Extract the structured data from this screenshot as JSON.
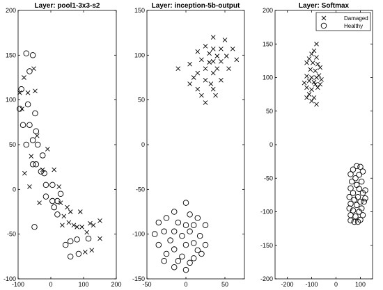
{
  "chart_data": [
    {
      "type": "scatter",
      "title": "Layer: pool1-3x3-s2",
      "xlim": [
        -100,
        200
      ],
      "ylim": [
        -100,
        200
      ],
      "xticks": [
        -100,
        0,
        100,
        200
      ],
      "yticks": [
        -100,
        -50,
        0,
        50,
        100,
        150,
        200
      ],
      "series": [
        {
          "marker": "x",
          "points": [
            [
              -95,
              108
            ],
            [
              -82,
              125
            ],
            [
              -52,
              135
            ],
            [
              -70,
              108
            ],
            [
              -48,
              110
            ],
            [
              -88,
              90
            ],
            [
              -42,
              60
            ],
            [
              -10,
              45
            ],
            [
              -60,
              37
            ],
            [
              -25,
              22
            ],
            [
              -80,
              18
            ],
            [
              -65,
              3
            ],
            [
              10,
              22
            ],
            [
              25,
              3
            ],
            [
              30,
              -15
            ],
            [
              50,
              -20
            ],
            [
              60,
              -25
            ],
            [
              70,
              -40
            ],
            [
              55,
              -37
            ],
            [
              40,
              -30
            ],
            [
              35,
              -40
            ],
            [
              80,
              -42
            ],
            [
              95,
              -42
            ],
            [
              110,
              -48
            ],
            [
              130,
              -40
            ],
            [
              150,
              -35
            ],
            [
              150,
              -55
            ],
            [
              105,
              -70
            ],
            [
              125,
              -68
            ],
            [
              120,
              -38
            ],
            [
              -35,
              -15
            ],
            [
              90,
              -25
            ]
          ]
        },
        {
          "marker": "o",
          "points": [
            [
              -75,
              152
            ],
            [
              -55,
              150
            ],
            [
              -65,
              132
            ],
            [
              -90,
              112
            ],
            [
              -70,
              95
            ],
            [
              -95,
              90
            ],
            [
              -48,
              85
            ],
            [
              -85,
              72
            ],
            [
              -65,
              72
            ],
            [
              -45,
              65
            ],
            [
              -55,
              55
            ],
            [
              -75,
              50
            ],
            [
              -40,
              50
            ],
            [
              -25,
              38
            ],
            [
              -45,
              28
            ],
            [
              -55,
              28
            ],
            [
              -30,
              20
            ],
            [
              -20,
              18
            ],
            [
              -15,
              5
            ],
            [
              5,
              5
            ],
            [
              -15,
              -8
            ],
            [
              5,
              -13
            ],
            [
              20,
              -13
            ],
            [
              30,
              -5
            ],
            [
              10,
              -20
            ],
            [
              20,
              -28
            ],
            [
              60,
              -58
            ],
            [
              45,
              -62
            ],
            [
              80,
              -56
            ],
            [
              115,
              -55
            ],
            [
              85,
              -72
            ],
            [
              60,
              -75
            ],
            [
              -50,
              -42
            ]
          ]
        }
      ]
    },
    {
      "type": "scatter",
      "title": "Layer: inception-5b-output",
      "xlim": [
        -50,
        75
      ],
      "ylim": [
        -150,
        150
      ],
      "xticks": [
        -50,
        0,
        50
      ],
      "yticks": [
        -150,
        -100,
        -50,
        0,
        50,
        100,
        150
      ],
      "series": [
        {
          "marker": "x",
          "points": [
            [
              35,
              120
            ],
            [
              50,
              117
            ],
            [
              25,
              110
            ],
            [
              35,
              107
            ],
            [
              45,
              107
            ],
            [
              60,
              107
            ],
            [
              15,
              104
            ],
            [
              30,
              102
            ],
            [
              40,
              99
            ],
            [
              52,
              99
            ],
            [
              65,
              95
            ],
            [
              20,
              95
            ],
            [
              35,
              93
            ],
            [
              45,
              93
            ],
            [
              5,
              90
            ],
            [
              25,
              85
            ],
            [
              40,
              85
            ],
            [
              55,
              85
            ],
            [
              15,
              80
            ],
            [
              35,
              80
            ],
            [
              10,
              75
            ],
            [
              25,
              72
            ],
            [
              45,
              72
            ],
            [
              32,
              68
            ],
            [
              5,
              68
            ],
            [
              15,
              62
            ],
            [
              35,
              62
            ],
            [
              20,
              55
            ],
            [
              38,
              55
            ],
            [
              25,
              47
            ],
            [
              -10,
              85
            ],
            [
              30,
              92
            ]
          ]
        },
        {
          "marker": "o",
          "points": [
            [
              0,
              -65
            ],
            [
              -15,
              -75
            ],
            [
              5,
              -78
            ],
            [
              -25,
              -82
            ],
            [
              15,
              -82
            ],
            [
              -10,
              -87
            ],
            [
              -35,
              -87
            ],
            [
              0,
              -90
            ],
            [
              10,
              -90
            ],
            [
              25,
              -90
            ],
            [
              -15,
              -97
            ],
            [
              -28,
              -97
            ],
            [
              5,
              -97
            ],
            [
              -40,
              -100
            ],
            [
              -5,
              -102
            ],
            [
              18,
              -102
            ],
            [
              -20,
              -107
            ],
            [
              10,
              -110
            ],
            [
              -35,
              -112
            ],
            [
              0,
              -112
            ],
            [
              25,
              -112
            ],
            [
              -15,
              -117
            ],
            [
              15,
              -118
            ],
            [
              -25,
              -122
            ],
            [
              -5,
              -125
            ],
            [
              10,
              -127
            ],
            [
              20,
              -122
            ],
            [
              -10,
              -130
            ],
            [
              5,
              -132
            ],
            [
              -28,
              -130
            ],
            [
              -15,
              -137
            ],
            [
              0,
              -140
            ]
          ]
        }
      ]
    },
    {
      "type": "scatter",
      "title": "Layer: Softmax",
      "xlim": [
        -250,
        150
      ],
      "ylim": [
        -200,
        200
      ],
      "xticks": [
        -200,
        -100,
        0,
        100
      ],
      "yticks": [
        -200,
        -150,
        -100,
        -50,
        0,
        50,
        100,
        150,
        200
      ],
      "legend": {
        "placement": "top-right",
        "entries": [
          {
            "label": "Damaged",
            "marker": "x"
          },
          {
            "label": "Healthy",
            "marker": "o"
          }
        ]
      },
      "series": [
        {
          "name": "Damaged",
          "marker": "x",
          "points": [
            [
              -80,
              150
            ],
            [
              -90,
              140
            ],
            [
              -100,
              135
            ],
            [
              -80,
              130
            ],
            [
              -110,
              128
            ],
            [
              -120,
              122
            ],
            [
              -95,
              122
            ],
            [
              -75,
              120
            ],
            [
              -65,
              115
            ],
            [
              -105,
              112
            ],
            [
              -85,
              110
            ],
            [
              -70,
              103
            ],
            [
              -120,
              102
            ],
            [
              -100,
              100
            ],
            [
              -80,
              100
            ],
            [
              -60,
              97
            ],
            [
              -110,
              95
            ],
            [
              -90,
              93
            ],
            [
              -120,
              85
            ],
            [
              -100,
              82
            ],
            [
              -75,
              85
            ],
            [
              -65,
              90
            ],
            [
              -110,
              75
            ],
            [
              -90,
              70
            ],
            [
              -100,
              65
            ],
            [
              -80,
              60
            ],
            [
              -120,
              70
            ],
            [
              -130,
              92
            ],
            [
              -85,
              90
            ]
          ]
        },
        {
          "name": "Healthy",
          "marker": "o",
          "points": [
            [
              85,
              -32
            ],
            [
              100,
              -33
            ],
            [
              70,
              -37
            ],
            [
              110,
              -40
            ],
            [
              60,
              -44
            ],
            [
              95,
              -45
            ],
            [
              80,
              -50
            ],
            [
              65,
              -55
            ],
            [
              105,
              -55
            ],
            [
              85,
              -60
            ],
            [
              60,
              -65
            ],
            [
              95,
              -66
            ],
            [
              120,
              -68
            ],
            [
              70,
              -72
            ],
            [
              110,
              -72
            ],
            [
              55,
              -78
            ],
            [
              90,
              -78
            ],
            [
              75,
              -82
            ],
            [
              115,
              -85
            ],
            [
              100,
              -85
            ],
            [
              60,
              -88
            ],
            [
              85,
              -90
            ],
            [
              55,
              -95
            ],
            [
              105,
              -95
            ],
            [
              70,
              -98
            ],
            [
              95,
              -100
            ],
            [
              60,
              -105
            ],
            [
              80,
              -107
            ],
            [
              110,
              -105
            ],
            [
              75,
              -115
            ],
            [
              90,
              -115
            ],
            [
              60,
              -113
            ],
            [
              100,
              -112
            ],
            [
              120,
              -80
            ]
          ]
        }
      ]
    }
  ]
}
